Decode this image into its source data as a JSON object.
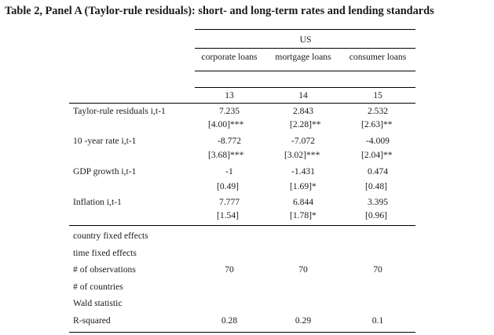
{
  "title": "Table 2, Panel A (Taylor-rule residuals):  short- and long-term rates and lending standards",
  "group_header": "US",
  "column_headers": [
    "corporate loans",
    "mortgage loans",
    "consumer loans"
  ],
  "column_numbers": [
    "13",
    "14",
    "15"
  ],
  "rows": [
    {
      "label": "Taylor-rule residuals i,t-1",
      "values": [
        "7.235",
        "2.843",
        "2.532"
      ],
      "se": [
        "[4.00]***",
        "[2.28]**",
        "[2.63]**"
      ]
    },
    {
      "label": "10 -year rate i,t-1",
      "values": [
        "-8.772",
        "-7.072",
        "-4.009"
      ],
      "se": [
        "[3.68]***",
        "[3.02]***",
        "[2.04]**"
      ]
    },
    {
      "label": "GDP growth i,t-1",
      "values": [
        "-1",
        "-1.431",
        "0.474"
      ],
      "se": [
        "[0.49]",
        "[1.69]*",
        "[0.48]"
      ]
    },
    {
      "label": "Inflation  i,t-1",
      "values": [
        "7.777",
        "6.844",
        "3.395"
      ],
      "se": [
        "[1.54]",
        "[1.78]*",
        "[0.96]"
      ]
    }
  ],
  "stats": [
    {
      "label": "country fixed effects",
      "values": [
        "",
        "",
        ""
      ]
    },
    {
      "label": "time fixed effects",
      "values": [
        "",
        "",
        ""
      ]
    },
    {
      "label": "# of observations",
      "values": [
        "70",
        "70",
        "70"
      ]
    },
    {
      "label": "# of countries",
      "values": [
        "",
        "",
        ""
      ]
    },
    {
      "label": "Wald statistic",
      "values": [
        "",
        "",
        ""
      ]
    },
    {
      "label": "R-squared",
      "values": [
        "0.28",
        "0.29",
        "0.1"
      ]
    }
  ]
}
